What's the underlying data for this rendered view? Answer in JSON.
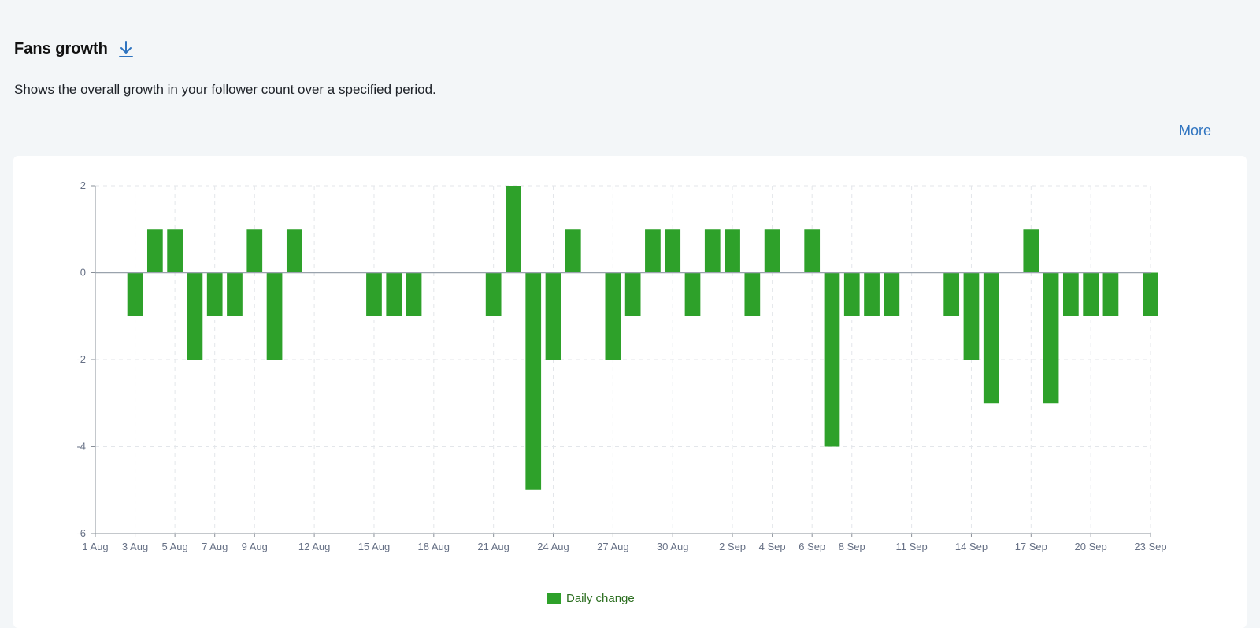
{
  "header": {
    "title": "Fans growth",
    "subtitle": "Shows the overall growth in your follower count over a specified period.",
    "more_label": "More",
    "download_icon": "download-icon"
  },
  "colors": {
    "bar": "#2ea12a",
    "accent_link": "#2f74c0",
    "grid": "#e3e6ea",
    "axis": "#8a9099",
    "baseline": "#9aa3ad"
  },
  "chart_data": {
    "type": "bar",
    "title": "",
    "xlabel": "",
    "ylabel": "",
    "ylim": [
      -6,
      2
    ],
    "yticks": [
      2,
      0,
      -2,
      -4,
      -6
    ],
    "grid": true,
    "legend_position": "bottom-center",
    "x_tick_labels": [
      "1 Aug",
      "3 Aug",
      "5 Aug",
      "7 Aug",
      "9 Aug",
      "12 Aug",
      "15 Aug",
      "18 Aug",
      "21 Aug",
      "24 Aug",
      "27 Aug",
      "30 Aug",
      "2 Sep",
      "4 Sep",
      "6 Sep",
      "8 Sep",
      "11 Sep",
      "14 Sep",
      "17 Sep",
      "20 Sep",
      "23 Sep"
    ],
    "categories": [
      "1 Aug",
      "2 Aug",
      "3 Aug",
      "4 Aug",
      "5 Aug",
      "6 Aug",
      "7 Aug",
      "8 Aug",
      "9 Aug",
      "10 Aug",
      "11 Aug",
      "12 Aug",
      "13 Aug",
      "14 Aug",
      "15 Aug",
      "16 Aug",
      "17 Aug",
      "18 Aug",
      "19 Aug",
      "20 Aug",
      "21 Aug",
      "22 Aug",
      "23 Aug",
      "24 Aug",
      "25 Aug",
      "26 Aug",
      "27 Aug",
      "28 Aug",
      "29 Aug",
      "30 Aug",
      "31 Aug",
      "1 Sep",
      "2 Sep",
      "3 Sep",
      "4 Sep",
      "5 Sep",
      "6 Sep",
      "7 Sep",
      "8 Sep",
      "9 Sep",
      "10 Sep",
      "11 Sep",
      "12 Sep",
      "13 Sep",
      "14 Sep",
      "15 Sep",
      "16 Sep",
      "17 Sep",
      "18 Sep",
      "19 Sep",
      "20 Sep",
      "21 Sep",
      "22 Sep",
      "23 Sep"
    ],
    "series": [
      {
        "name": "Daily change",
        "values": [
          0,
          0,
          -1,
          1,
          1,
          -2,
          -1,
          -1,
          1,
          -2,
          1,
          0,
          0,
          0,
          -1,
          -1,
          -1,
          0,
          0,
          0,
          -1,
          2,
          -5,
          -2,
          1,
          0,
          -2,
          -1,
          1,
          1,
          -1,
          1,
          1,
          -1,
          1,
          0,
          1,
          -4,
          -1,
          -1,
          -1,
          0,
          0,
          -1,
          -2,
          -3,
          0,
          1,
          -3,
          -1,
          -1,
          -1,
          0,
          -1
        ]
      }
    ]
  }
}
